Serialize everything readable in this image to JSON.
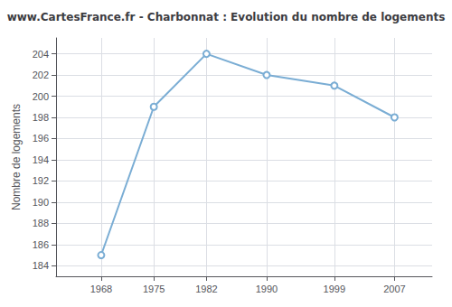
{
  "chart_data": {
    "type": "line",
    "title": "www.CartesFrance.fr - Charbonnat : Evolution du nombre de logements",
    "ylabel": "Nombre de logements",
    "x": [
      1968,
      1975,
      1982,
      1990,
      1999,
      2007
    ],
    "values": [
      185,
      199,
      204,
      202,
      201,
      198
    ],
    "xlim": [
      1962,
      2012
    ],
    "ylim": [
      183,
      205.5
    ],
    "xticks": [
      1968,
      1975,
      1982,
      1990,
      1999,
      2007
    ],
    "yticks": [
      184,
      186,
      188,
      190,
      192,
      194,
      196,
      198,
      200,
      202,
      204
    ],
    "color": "#7aadd4",
    "marker": "circle",
    "grid": true
  }
}
